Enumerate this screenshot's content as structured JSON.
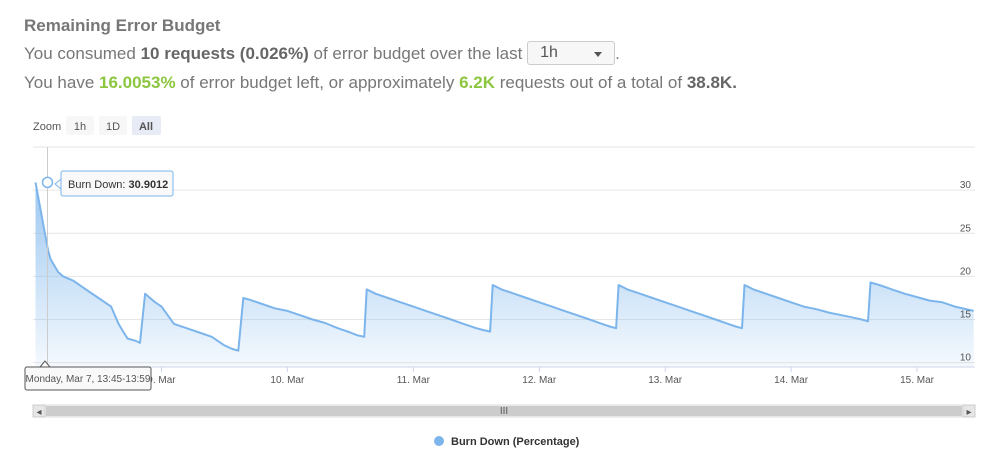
{
  "header": {
    "title": "Remaining Error Budget",
    "consumed_prefix": "You consumed ",
    "consumed_value": "10 requests (0.026%)",
    "consumed_suffix": " of error budget over the last ",
    "period_selected": "1h",
    "period_end": ".",
    "left_prefix": "You have ",
    "left_percent": "16.0053%",
    "left_middle": " of error budget left, or approximately ",
    "left_requests": "6.2K",
    "left_total_text": " requests out of a total of ",
    "left_total": "38.8K."
  },
  "zoom": {
    "label": "Zoom",
    "buttons": [
      "1h",
      "1D",
      "All"
    ],
    "active": "All"
  },
  "tooltip": {
    "series": "Burn Down: ",
    "value": "30.9012",
    "date_label": "Monday, Mar 7, 13:45-13:59"
  },
  "navigator": {
    "left_arrow": "◂",
    "right_arrow": "▸",
    "handle": "III"
  },
  "colors": {
    "line": "#7cb5ec",
    "green": "#8cc63f"
  },
  "chart_data": {
    "type": "area",
    "series": [
      {
        "name": "Burn Down (Percentage)",
        "x": [
          8.0,
          8.1,
          8.12,
          8.18,
          8.22,
          8.3,
          8.4,
          8.5,
          8.6,
          8.66,
          8.7,
          8.73,
          8.8,
          8.83,
          8.87,
          8.91,
          8.95,
          9.0,
          9.1,
          9.2,
          9.3,
          9.4,
          9.5,
          9.56,
          9.61,
          9.65,
          9.7,
          9.8,
          9.9,
          10.0,
          10.1,
          10.2,
          10.3,
          10.4,
          10.5,
          10.55,
          10.61,
          10.63,
          10.7,
          10.8,
          10.9,
          11.0,
          11.1,
          11.2,
          11.3,
          11.4,
          11.5,
          11.55,
          11.61,
          11.63,
          11.7,
          11.8,
          11.9,
          12.0,
          12.1,
          12.2,
          12.3,
          12.4,
          12.5,
          12.56,
          12.61,
          12.63,
          12.7,
          12.8,
          12.9,
          13.0,
          13.1,
          13.2,
          13.3,
          13.4,
          13.5,
          13.56,
          13.61,
          13.63,
          13.7,
          13.8,
          13.9,
          14.0,
          14.1,
          14.2,
          14.3,
          14.4,
          14.5,
          14.56,
          14.61,
          14.63,
          14.7,
          14.8,
          14.9,
          15.0,
          15.1,
          15.2,
          15.3,
          15.45
        ],
        "values": [
          30.9,
          23.0,
          22.0,
          20.5,
          20.0,
          19.5,
          18.5,
          17.5,
          16.5,
          14.5,
          13.5,
          12.8,
          12.5,
          12.3,
          18.0,
          17.5,
          17.0,
          16.5,
          14.5,
          14.0,
          13.5,
          13.0,
          12.0,
          11.6,
          11.4,
          17.5,
          17.3,
          16.8,
          16.3,
          16.0,
          15.5,
          15.0,
          14.6,
          14.0,
          13.5,
          13.2,
          13.0,
          18.5,
          18.0,
          17.5,
          17.0,
          16.5,
          16.0,
          15.5,
          15.0,
          14.5,
          14.0,
          13.8,
          13.6,
          19.0,
          18.5,
          18.0,
          17.5,
          17.0,
          16.5,
          16.0,
          15.5,
          15.0,
          14.5,
          14.2,
          14.0,
          19.0,
          18.5,
          18.0,
          17.5,
          17.0,
          16.5,
          16.0,
          15.5,
          15.0,
          14.5,
          14.2,
          14.0,
          19.0,
          18.5,
          18.0,
          17.5,
          17.0,
          16.5,
          16.2,
          15.8,
          15.5,
          15.2,
          15.0,
          14.8,
          19.3,
          19.0,
          18.5,
          18.0,
          17.6,
          17.2,
          17.0,
          16.5,
          16.0
        ]
      }
    ],
    "x_ticks": [
      9,
      10,
      11,
      12,
      13,
      14,
      15
    ],
    "x_tick_labels": [
      "9. Mar",
      "10. Mar",
      "11. Mar",
      "12. Mar",
      "13. Mar",
      "14. Mar",
      "15. Mar"
    ],
    "y_ticks": [
      10,
      15,
      20,
      25,
      30
    ],
    "xlim": [
      7.98,
      15.46
    ],
    "ylim": [
      9.5,
      35.0
    ],
    "title": "",
    "xlabel": "",
    "ylabel": "",
    "grid": true,
    "legend": "bottom-center"
  }
}
